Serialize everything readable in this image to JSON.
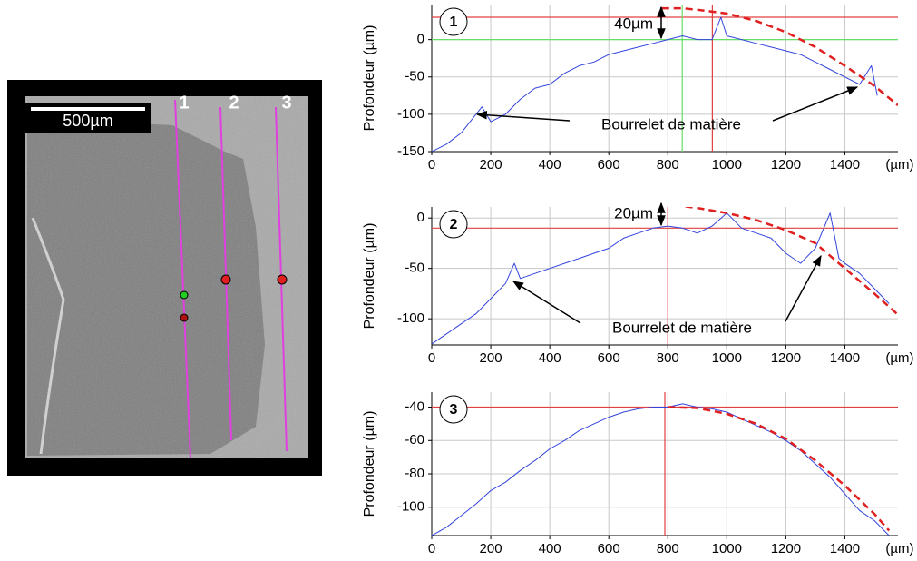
{
  "image": {
    "scale_bar": "500µm",
    "line_labels": [
      "1",
      "2",
      "3"
    ]
  },
  "chart_data": [
    {
      "type": "line",
      "panel": "1",
      "ylabel": "Profondeur (µm)",
      "xlabel": "(µm)",
      "xlim": [
        0,
        1580
      ],
      "ylim": [
        -150,
        47
      ],
      "xticks": [
        0,
        200,
        400,
        600,
        800,
        1000,
        1200,
        1400
      ],
      "yticks": [
        -150,
        -100,
        -50,
        0
      ],
      "grid": true,
      "annotations": [
        "40µm",
        "Bourrelet de matière"
      ],
      "hlines": [
        {
          "value": 30,
          "color": "#e04040"
        },
        {
          "value": 0,
          "color": "#66dd66"
        }
      ],
      "vlines": [
        {
          "value": 951,
          "color": "#e04040"
        },
        {
          "value": 849,
          "color": "#66dd66"
        }
      ],
      "series": [
        {
          "color": "#3344dd",
          "dashed": false,
          "x": [
            0,
            50,
            100,
            150,
            170,
            200,
            250,
            300,
            350,
            400,
            450,
            500,
            550,
            600,
            650,
            700,
            750,
            800,
            850,
            900,
            950,
            980,
            1000,
            1050,
            1100,
            1150,
            1200,
            1250,
            1300,
            1350,
            1400,
            1450,
            1490,
            1510
          ],
          "values": [
            -150,
            -140,
            -125,
            -100,
            -90,
            -110,
            -100,
            -80,
            -65,
            -60,
            -45,
            -35,
            -30,
            -20,
            -15,
            -10,
            -5,
            0,
            5,
            0,
            0,
            30,
            5,
            0,
            -5,
            -10,
            -15,
            -20,
            -30,
            -40,
            -50,
            -60,
            -35,
            -75
          ]
        },
        {
          "color": "#e02020",
          "dashed": true,
          "x": [
            780,
            850,
            900,
            1000,
            1100,
            1200,
            1300,
            1400,
            1500,
            1580
          ],
          "values": [
            42,
            42,
            40,
            35,
            25,
            10,
            -10,
            -35,
            -62,
            -88
          ]
        }
      ]
    },
    {
      "type": "line",
      "panel": "2",
      "ylabel": "Profondeur (µm)",
      "xlabel": "(µm)",
      "xlim": [
        0,
        1580
      ],
      "ylim": [
        -126,
        11
      ],
      "xticks": [
        0,
        200,
        400,
        600,
        800,
        1000,
        1200,
        1400
      ],
      "yticks": [
        -100,
        -50,
        0
      ],
      "grid": true,
      "annotations": [
        "20µm",
        "Bourrelet de matière"
      ],
      "hlines": [
        {
          "value": -10,
          "color": "#e04040"
        }
      ],
      "vlines": [
        {
          "value": 800,
          "color": "#e04040"
        }
      ],
      "series": [
        {
          "color": "#3344dd",
          "dashed": false,
          "x": [
            0,
            50,
            100,
            150,
            200,
            250,
            280,
            300,
            350,
            400,
            450,
            500,
            550,
            600,
            650,
            700,
            750,
            800,
            850,
            900,
            950,
            1000,
            1050,
            1100,
            1150,
            1200,
            1250,
            1300,
            1350,
            1380,
            1400,
            1450,
            1500,
            1550
          ],
          "values": [
            -125,
            -115,
            -105,
            -95,
            -80,
            -65,
            -45,
            -60,
            -55,
            -50,
            -45,
            -40,
            -35,
            -30,
            -20,
            -15,
            -10,
            -8,
            -10,
            -15,
            -8,
            5,
            -10,
            -15,
            -20,
            -35,
            -45,
            -30,
            5,
            -40,
            -45,
            -55,
            -70,
            -85
          ]
        },
        {
          "color": "#e02020",
          "dashed": true,
          "x": [
            780,
            850,
            900,
            1000,
            1100,
            1200,
            1300,
            1400,
            1500,
            1580
          ],
          "values": [
            13,
            12,
            10,
            5,
            -2,
            -12,
            -25,
            -50,
            -75,
            -96
          ]
        }
      ]
    },
    {
      "type": "line",
      "panel": "3",
      "ylabel": "Profondeur (µm)",
      "xlabel": "(µm)",
      "xlim": [
        0,
        1580
      ],
      "ylim": [
        -117,
        -31
      ],
      "xticks": [
        0,
        200,
        400,
        600,
        800,
        1000,
        1200,
        1400
      ],
      "yticks": [
        -100,
        -80,
        -60,
        -40
      ],
      "grid": true,
      "annotations": [],
      "hlines": [
        {
          "value": -40,
          "color": "#e04040"
        }
      ],
      "vlines": [
        {
          "value": 790,
          "color": "#e04040"
        }
      ],
      "series": [
        {
          "color": "#3344dd",
          "dashed": false,
          "x": [
            0,
            50,
            100,
            150,
            200,
            250,
            300,
            350,
            400,
            450,
            500,
            550,
            600,
            650,
            700,
            750,
            800,
            850,
            900,
            950,
            1000,
            1050,
            1100,
            1150,
            1200,
            1250,
            1300,
            1350,
            1400,
            1450,
            1500,
            1550
          ],
          "values": [
            -117,
            -112,
            -105,
            -98,
            -90,
            -85,
            -78,
            -72,
            -65,
            -60,
            -54,
            -50,
            -46,
            -43,
            -41,
            -40,
            -40,
            -38,
            -40,
            -41,
            -43,
            -47,
            -51,
            -55,
            -60,
            -66,
            -74,
            -82,
            -92,
            -102,
            -108,
            -117
          ]
        },
        {
          "color": "#e02020",
          "dashed": true,
          "x": [
            800,
            900,
            1000,
            1100,
            1200,
            1300,
            1400,
            1500,
            1550
          ],
          "values": [
            -40,
            -40.5,
            -44,
            -50,
            -59,
            -72,
            -87,
            -104,
            -114
          ]
        }
      ]
    }
  ]
}
